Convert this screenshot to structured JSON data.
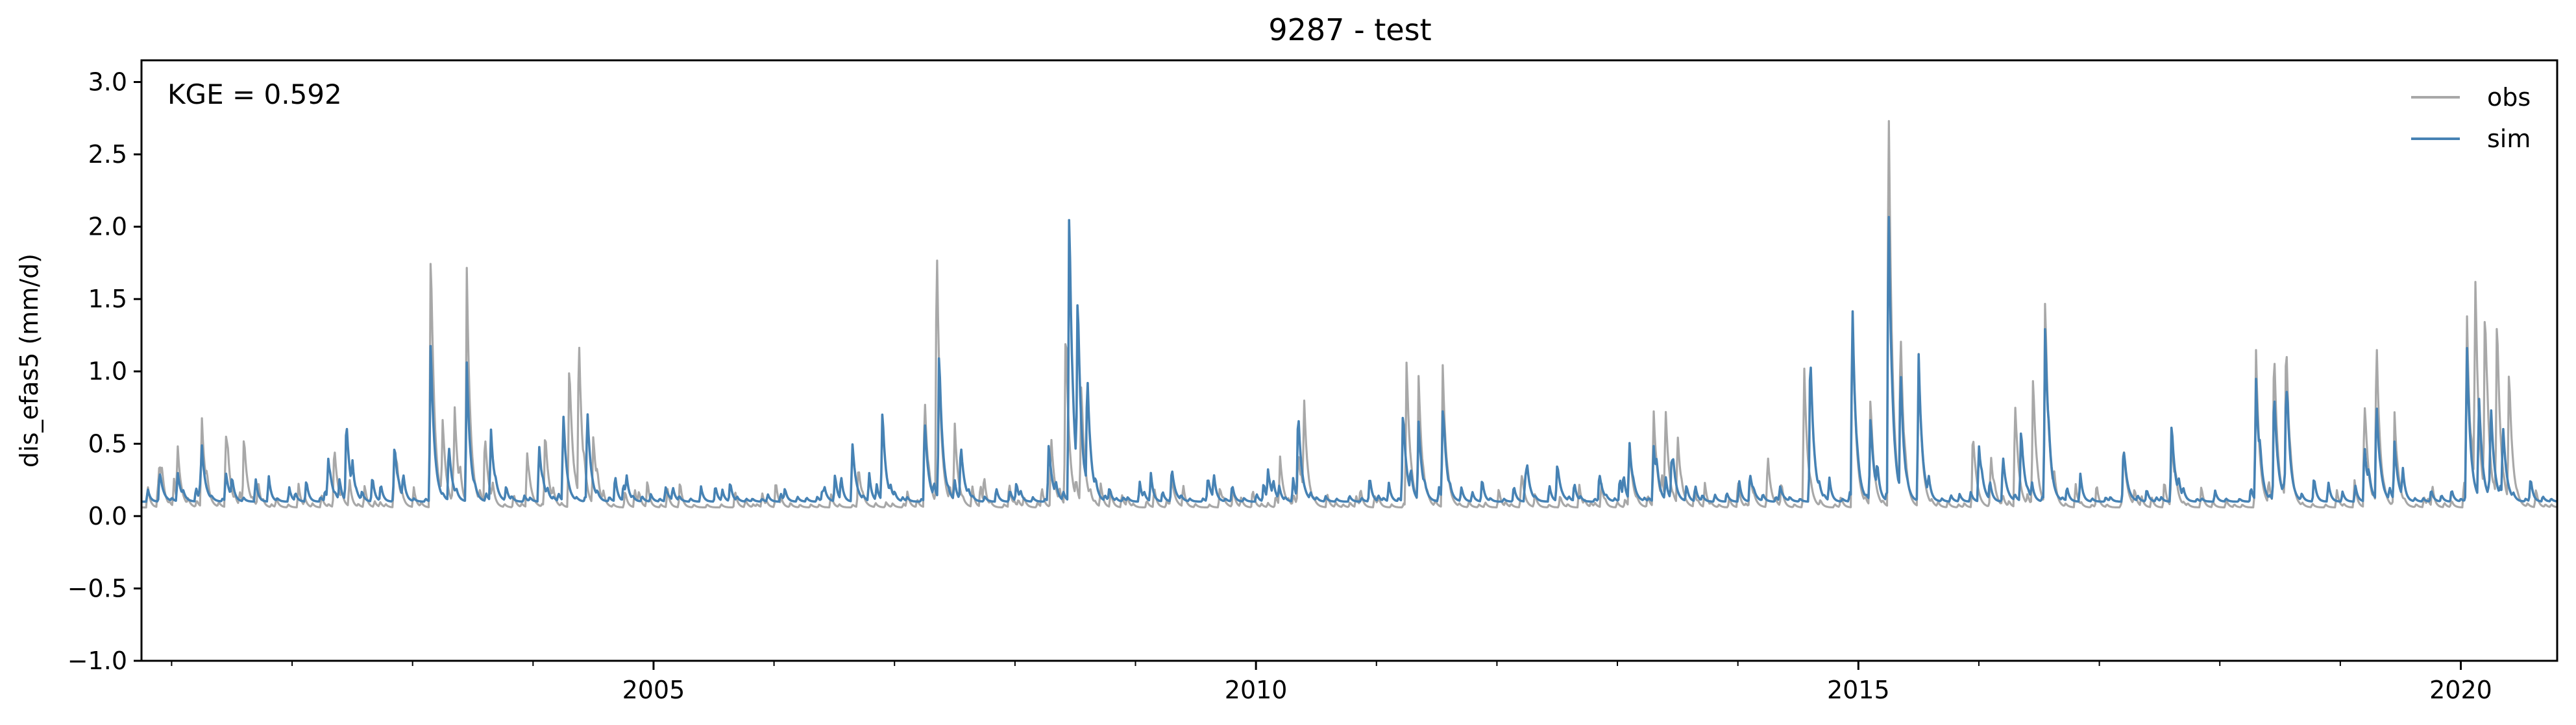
{
  "chart_data": {
    "type": "line",
    "title": "9287 - test",
    "xlabel": "",
    "ylabel": "dis_efas5 (mm/d)",
    "annotation": "KGE = 0.592",
    "xlim": [
      2000.75,
      2020.8
    ],
    "ylim": [
      -1.0,
      3.15
    ],
    "x_ticks": [
      {
        "value": 2005,
        "label": "2005"
      },
      {
        "value": 2010,
        "label": "2010"
      },
      {
        "value": 2015,
        "label": "2015"
      },
      {
        "value": 2020,
        "label": "2020"
      }
    ],
    "y_ticks": [
      {
        "value": 3.0,
        "label": "3.0"
      },
      {
        "value": 2.5,
        "label": "2.5"
      },
      {
        "value": 2.0,
        "label": "2.0"
      },
      {
        "value": 1.5,
        "label": "1.5"
      },
      {
        "value": 1.0,
        "label": "1.0"
      },
      {
        "value": 0.5,
        "label": "0.5"
      },
      {
        "value": 0.0,
        "label": "0.0"
      },
      {
        "value": -0.5,
        "label": "−0.5"
      },
      {
        "value": -1.0,
        "label": "−1.0"
      }
    ],
    "grid": false,
    "legend_position": "top-right",
    "baseline": {
      "obs": 0.06,
      "sim": 0.1
    },
    "series": [
      {
        "name": "obs",
        "color": "#a8a8a8",
        "peaks": [
          [
            2000.9,
            0.3
          ],
          [
            2001.05,
            0.45
          ],
          [
            2001.25,
            0.7
          ],
          [
            2001.45,
            0.58
          ],
          [
            2001.6,
            0.55
          ],
          [
            2002.35,
            0.5
          ],
          [
            2002.85,
            0.5
          ],
          [
            2003.15,
            1.85
          ],
          [
            2003.25,
            0.6
          ],
          [
            2003.35,
            0.65
          ],
          [
            2003.45,
            1.67
          ],
          [
            2003.6,
            0.55
          ],
          [
            2003.95,
            0.45
          ],
          [
            2004.1,
            0.6
          ],
          [
            2004.3,
            1.1
          ],
          [
            2004.38,
            1.22
          ],
          [
            2004.5,
            0.55
          ],
          [
            2006.7,
            0.35
          ],
          [
            2007.25,
            0.85
          ],
          [
            2007.35,
            1.94
          ],
          [
            2007.5,
            0.6
          ],
          [
            2008.3,
            0.55
          ],
          [
            2008.42,
            1.35
          ],
          [
            2008.55,
            0.9
          ],
          [
            2009.3,
            0.25
          ],
          [
            2009.7,
            0.2
          ],
          [
            2010.2,
            0.4
          ],
          [
            2010.35,
            0.45
          ],
          [
            2010.4,
            0.72
          ],
          [
            2011.25,
            1.1
          ],
          [
            2011.35,
            0.95
          ],
          [
            2011.55,
            1.05
          ],
          [
            2012.2,
            0.2
          ],
          [
            2013.1,
            0.5
          ],
          [
            2013.3,
            0.75
          ],
          [
            2013.4,
            0.7
          ],
          [
            2013.5,
            0.55
          ],
          [
            2014.1,
            0.3
          ],
          [
            2014.25,
            0.3
          ],
          [
            2014.55,
            1.0
          ],
          [
            2014.95,
            1.48
          ],
          [
            2015.1,
            0.8
          ],
          [
            2015.25,
            3.01
          ],
          [
            2015.35,
            1.2
          ],
          [
            2015.5,
            1.1
          ],
          [
            2015.95,
            0.6
          ],
          [
            2016.1,
            0.4
          ],
          [
            2016.3,
            0.8
          ],
          [
            2016.45,
            0.9
          ],
          [
            2016.55,
            1.5
          ],
          [
            2017.2,
            0.5
          ],
          [
            2017.6,
            0.55
          ],
          [
            2018.3,
            1.1
          ],
          [
            2018.45,
            1.2
          ],
          [
            2018.55,
            1.24
          ],
          [
            2019.2,
            0.8
          ],
          [
            2019.3,
            1.24
          ],
          [
            2019.45,
            0.7
          ],
          [
            2020.05,
            1.4
          ],
          [
            2020.12,
            1.48
          ],
          [
            2020.2,
            1.42
          ],
          [
            2020.3,
            1.38
          ],
          [
            2020.4,
            1.0
          ]
        ]
      },
      {
        "name": "sim",
        "color": "#4682b4",
        "peaks": [
          [
            2000.9,
            0.3
          ],
          [
            2001.05,
            0.3
          ],
          [
            2001.25,
            0.45
          ],
          [
            2001.45,
            0.3
          ],
          [
            2002.3,
            0.38
          ],
          [
            2002.45,
            0.68
          ],
          [
            2002.85,
            0.5
          ],
          [
            2003.15,
            1.22
          ],
          [
            2003.3,
            0.5
          ],
          [
            2003.45,
            1.0
          ],
          [
            2003.65,
            0.6
          ],
          [
            2004.05,
            0.5
          ],
          [
            2004.25,
            0.6
          ],
          [
            2004.45,
            0.75
          ],
          [
            2004.75,
            0.22
          ],
          [
            2005.1,
            0.2
          ],
          [
            2006.4,
            0.18
          ],
          [
            2006.65,
            0.5
          ],
          [
            2006.9,
            0.58
          ],
          [
            2007.25,
            0.65
          ],
          [
            2007.37,
            1.15
          ],
          [
            2007.55,
            0.5
          ],
          [
            2008.28,
            0.5
          ],
          [
            2008.45,
            2.2
          ],
          [
            2008.52,
            1.4
          ],
          [
            2008.6,
            0.9
          ],
          [
            2009.3,
            0.3
          ],
          [
            2009.6,
            0.25
          ],
          [
            2010.1,
            0.3
          ],
          [
            2010.35,
            0.7
          ],
          [
            2011.22,
            0.75
          ],
          [
            2011.35,
            0.65
          ],
          [
            2011.55,
            0.7
          ],
          [
            2012.25,
            0.28
          ],
          [
            2012.5,
            0.35
          ],
          [
            2012.85,
            0.3
          ],
          [
            2013.1,
            0.5
          ],
          [
            2013.3,
            0.5
          ],
          [
            2013.45,
            0.4
          ],
          [
            2014.1,
            0.3
          ],
          [
            2014.35,
            0.2
          ],
          [
            2014.6,
            1.14
          ],
          [
            2014.95,
            1.5
          ],
          [
            2015.1,
            0.7
          ],
          [
            2015.25,
            2.26
          ],
          [
            2015.35,
            0.9
          ],
          [
            2015.5,
            1.1
          ],
          [
            2016.0,
            0.5
          ],
          [
            2016.2,
            0.4
          ],
          [
            2016.35,
            0.6
          ],
          [
            2016.55,
            1.35
          ],
          [
            2017.2,
            0.48
          ],
          [
            2017.6,
            0.58
          ],
          [
            2018.3,
            0.95
          ],
          [
            2018.45,
            0.9
          ],
          [
            2018.55,
            0.85
          ],
          [
            2019.2,
            0.5
          ],
          [
            2019.3,
            0.8
          ],
          [
            2019.45,
            0.5
          ],
          [
            2020.05,
            1.2
          ],
          [
            2020.15,
            0.76
          ],
          [
            2020.25,
            0.7
          ],
          [
            2020.35,
            0.6
          ]
        ]
      }
    ]
  }
}
